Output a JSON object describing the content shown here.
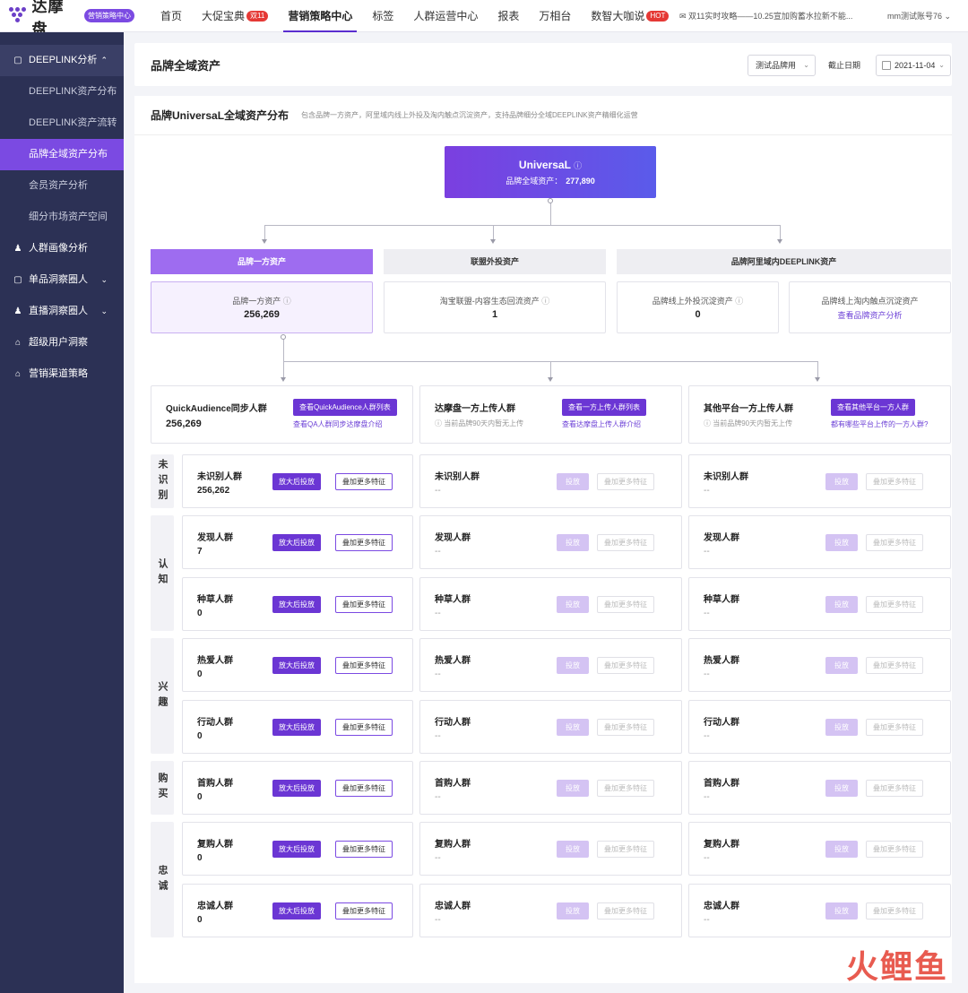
{
  "app": {
    "logo_text": "达摩盘",
    "badge": "营销策略中心",
    "account": "mm测试账号76",
    "notice": "双11实时攻略——10.25宣加购蓄水拉新不能..."
  },
  "nav": {
    "items": [
      {
        "label": "首页",
        "badge": ""
      },
      {
        "label": "大促宝典",
        "badge": "双11"
      },
      {
        "label": "营销策略中心",
        "badge": ""
      },
      {
        "label": "标签",
        "badge": ""
      },
      {
        "label": "人群运营中心",
        "badge": ""
      },
      {
        "label": "报表",
        "badge": ""
      },
      {
        "label": "万相台",
        "badge": ""
      },
      {
        "label": "数智大咖说",
        "badge": "HOT"
      }
    ],
    "active": "营销策略中心"
  },
  "sidebar": {
    "items": [
      {
        "label": "DEEPLINK分析",
        "icon": "bag-icon"
      },
      {
        "label": "DEEPLINK资产分布"
      },
      {
        "label": "DEEPLINK资产流转"
      },
      {
        "label": "品牌全域资产分布"
      },
      {
        "label": "会员资产分析"
      },
      {
        "label": "细分市场资产空间"
      },
      {
        "label": "人群画像分析",
        "icon": "users-icon"
      },
      {
        "label": "单品洞察圈人",
        "icon": "bag-icon"
      },
      {
        "label": "直播洞察圈人",
        "icon": "users-icon"
      },
      {
        "label": "超级用户洞察",
        "icon": "bank-icon"
      },
      {
        "label": "营销渠道策略",
        "icon": "bank-icon"
      }
    ],
    "active": "品牌全域资产分布"
  },
  "header": {
    "title": "品牌全域资产",
    "brand_select": "测试品牌用",
    "date_label": "截止日期",
    "date_value": "2021-11-04"
  },
  "section": {
    "title": "品牌UniversaL全域资产分布",
    "desc": "包含品牌一方资产，阿里域内线上外投及淘内触点沉淀资产，支持品牌细分全域DEEPLINK资产精细化运营"
  },
  "universal": {
    "title": "UniversaL",
    "sub_label": "品牌全域资产：",
    "value": "277,890"
  },
  "categories": [
    "品牌一方资产",
    "联盟外投资产",
    "品牌阿里域内DEEPLINK资产"
  ],
  "assets": [
    {
      "label": "品牌一方资产",
      "value": "256,269"
    },
    {
      "label": "淘宝联盟-内容生态回流资产",
      "value": "1"
    },
    {
      "label": "品牌线上外投沉淀资产",
      "value": "0"
    },
    {
      "label": "品牌线上淘内触点沉淀资产",
      "link": "查看品牌资产分析"
    }
  ],
  "sources": [
    {
      "title": "QuickAudience同步人群",
      "value": "256,269",
      "button": "查看QuickAudience人群列表",
      "link": "查看QA人群同步达摩盘介绍"
    },
    {
      "title": "达摩盘一方上传人群",
      "tip": "当前品牌90天内暂无上传",
      "button": "查看一方上传人群列表",
      "link": "查看达摩盘上传人群介绍"
    },
    {
      "title": "其他平台一方上传人群",
      "tip": "当前品牌90天内暂无上传",
      "button": "查看其他平台一方人群",
      "link": "都有哪些平台上传的一方人群?"
    }
  ],
  "stages": [
    "未识别",
    "认知",
    "兴趣",
    "购买",
    "忠诚"
  ],
  "rows": [
    {
      "name": "未识别人群",
      "values": [
        "256,262",
        "--",
        "--"
      ]
    },
    {
      "name": "发现人群",
      "values": [
        "7",
        "--",
        "--"
      ]
    },
    {
      "name": "种草人群",
      "values": [
        "0",
        "--",
        "--"
      ]
    },
    {
      "name": "热爱人群",
      "values": [
        "0",
        "--",
        "--"
      ]
    },
    {
      "name": "行动人群",
      "values": [
        "0",
        "--",
        "--"
      ]
    },
    {
      "name": "首购人群",
      "values": [
        "0",
        "--",
        "--"
      ]
    },
    {
      "name": "复购人群",
      "values": [
        "0",
        "--",
        "--"
      ]
    },
    {
      "name": "忠诚人群",
      "values": [
        "0",
        "--",
        "--"
      ]
    }
  ],
  "buttons": {
    "amplify": "放大后投放",
    "deliver": "投放",
    "add_features": "叠加更多特征"
  },
  "watermark": "火鲤鱼",
  "colors": {
    "accent": "#6b36d4",
    "sidebar": "#2c3155",
    "active": "#7b4ae2"
  }
}
